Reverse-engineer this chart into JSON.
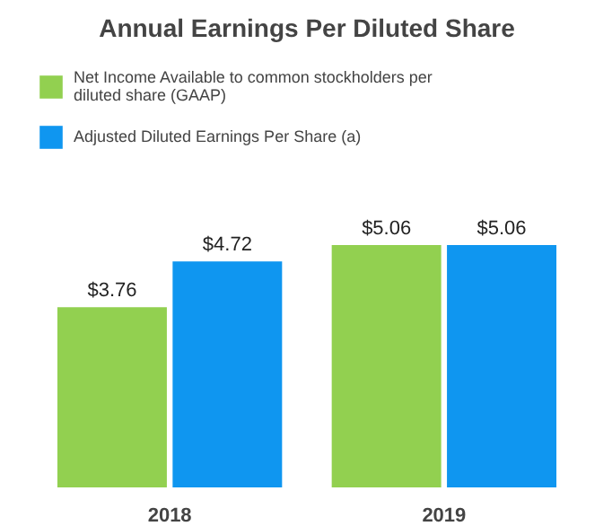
{
  "chart_data": {
    "type": "bar",
    "title": "Annual Earnings Per Diluted Share",
    "categories": [
      "2018",
      "2019"
    ],
    "series": [
      {
        "name": "Net Income Available to common stockholders per diluted share (GAAP)",
        "color": "#92d050",
        "values": [
          3.76,
          5.06
        ],
        "value_labels": [
          "$3.76",
          "$5.06"
        ]
      },
      {
        "name": "Adjusted Diluted Earnings Per Share (a)",
        "color": "#0f96f0",
        "values": [
          4.72,
          5.06
        ],
        "value_labels": [
          "$4.72",
          "$5.06"
        ]
      }
    ],
    "legend": "top"
  }
}
